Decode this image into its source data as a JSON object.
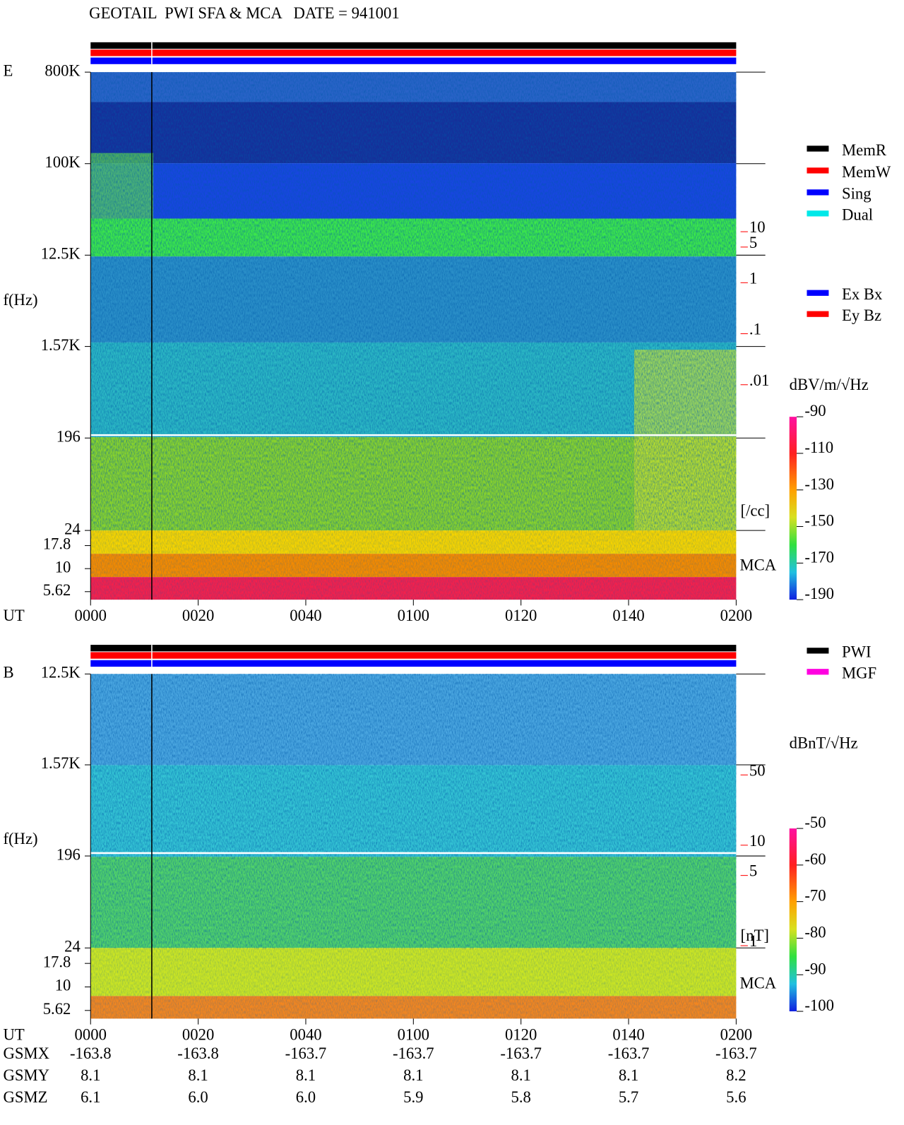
{
  "title": "GEOTAIL  PWI SFA & MCA   DATE = 941001",
  "chart_data": [
    {
      "type": "spectrogram",
      "panel_label": "E",
      "ylabel": "f(Hz)",
      "xlabel": "UT",
      "yscale": "log",
      "xlim": [
        0,
        120
      ],
      "xticks": [
        {
          "value": 0,
          "label": "0000"
        },
        {
          "value": 20,
          "label": "0020"
        },
        {
          "value": 40,
          "label": "0040"
        },
        {
          "value": 60,
          "label": "0100"
        },
        {
          "value": 80,
          "label": "0120"
        },
        {
          "value": 100,
          "label": "0140"
        },
        {
          "value": 120,
          "label": "0200"
        }
      ],
      "ylim": [
        24,
        800000
      ],
      "yticks": [
        {
          "value": 800000,
          "label": "800K"
        },
        {
          "value": 100000,
          "label": "100K"
        },
        {
          "value": 12500,
          "label": "12.5K"
        },
        {
          "value": 1570,
          "label": "1.57K"
        },
        196,
        24
      ],
      "mca_label": "MCA",
      "mca_ylim": [
        4.6,
        26
      ],
      "mca_yticks": [
        17.8,
        10,
        5.62
      ],
      "y2label": "[/cc]",
      "y2color": "#ff0000",
      "y2lim": [
        1.39e-05,
        13450
      ],
      "y2ticks": [
        10,
        5,
        1,
        {
          "value": 0.1,
          "label": ".1"
        },
        {
          "value": 0.01,
          "label": ".01"
        }
      ],
      "colorbar": {
        "label": "dBV/m/√Hz",
        "lim": [
          -190,
          -90
        ],
        "ticks": [
          -90,
          -110,
          -130,
          -150,
          -170,
          -190
        ]
      },
      "legend": [
        [
          {
            "name": "MemR",
            "color": "#000000"
          },
          {
            "name": "MemW",
            "color": "#ff0000"
          },
          {
            "name": "Sing",
            "color": "#0000ff"
          },
          {
            "name": "Dual",
            "color": "#00e8e8"
          }
        ],
        [
          {
            "name": "Ex Bx",
            "color": "#0000ff"
          },
          {
            "name": "Ey Bz",
            "color": "#ff0000"
          }
        ]
      ]
    },
    {
      "type": "spectrogram",
      "panel_label": "B",
      "ylabel": "f(Hz)",
      "xlabel": "UT",
      "yscale": "log",
      "xlim": [
        0,
        120
      ],
      "xticks": [
        {
          "value": 0,
          "label": "0000"
        },
        {
          "value": 20,
          "label": "0020"
        },
        {
          "value": 40,
          "label": "0040"
        },
        {
          "value": 60,
          "label": "0100"
        },
        {
          "value": 80,
          "label": "0120"
        },
        {
          "value": 100,
          "label": "0140"
        },
        {
          "value": 120,
          "label": "0200"
        }
      ],
      "ylim": [
        24,
        12500
      ],
      "yticks": [
        {
          "value": 12500,
          "label": "12.5K"
        },
        {
          "value": 1570,
          "label": "1.57K"
        },
        196,
        24
      ],
      "mca_label": "MCA",
      "mca_ylim": [
        4.6,
        26
      ],
      "mca_yticks": [
        17.8,
        10,
        5.62
      ],
      "y2label": "[nT]",
      "y2color": "#ff0000",
      "y2lim": [
        0.95,
        505
      ],
      "y2ticks": [
        50,
        10,
        5,
        1
      ],
      "colorbar": {
        "label": "dBnT/√Hz",
        "lim": [
          -100,
          -50
        ],
        "ticks": [
          -50,
          -60,
          -70,
          -80,
          -90,
          -100
        ]
      },
      "legend": [
        [
          {
            "name": "PWI",
            "color": "#000000"
          },
          {
            "name": "MGF",
            "color": "#ff00e0"
          }
        ]
      ]
    }
  ],
  "orbit": {
    "rows": [
      {
        "label": "GSMX",
        "values": [
          "-163.8",
          "-163.8",
          "-163.7",
          "-163.7",
          "-163.7",
          "-163.7",
          "-163.7"
        ]
      },
      {
        "label": "GSMY",
        "values": [
          "8.1",
          "8.1",
          "8.1",
          "8.1",
          "8.1",
          "8.1",
          "8.2"
        ]
      },
      {
        "label": "GSMZ",
        "values": [
          "6.1",
          "6.0",
          "6.0",
          "5.9",
          "5.8",
          "5.7",
          "5.6"
        ]
      }
    ]
  }
}
